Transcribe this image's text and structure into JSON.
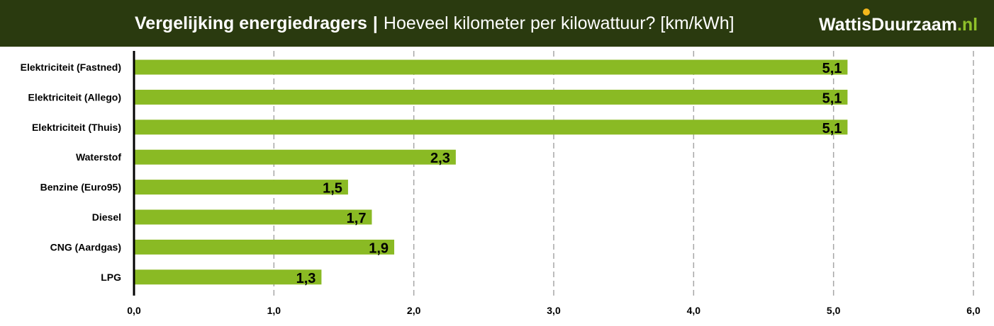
{
  "header": {
    "title_bold": "Vergelijking energiedragers",
    "separator": "|",
    "title_rest": "Hoeveel kilometer per kilowattuur? [km/kWh]",
    "logo_main": "WattisDuurzaam",
    "logo_suffix": ".nl"
  },
  "colors": {
    "header_bg": "#2a3a0f",
    "bar": "#8aba24",
    "grid": "#a6a6a6",
    "axis": "#000000",
    "logo_accent": "#8fc02a",
    "sun": "#f5b81c"
  },
  "chart_data": {
    "type": "bar",
    "orientation": "horizontal",
    "title": "Vergelijking energiedragers | Hoeveel kilometer per kilowattuur? [km/kWh]",
    "categories": [
      "Elektriciteit (Fastned)",
      "Elektriciteit (Allego)",
      "Elektriciteit (Thuis)",
      "Waterstof",
      "Benzine (Euro95)",
      "Diesel",
      "CNG (Aardgas)",
      "LPG"
    ],
    "values": [
      5.1,
      5.1,
      5.1,
      2.3,
      1.53,
      1.7,
      1.86,
      1.34
    ],
    "value_labels": [
      "5,1",
      "5,1",
      "5,1",
      "2,3",
      "1,5",
      "1,7",
      "1,9",
      "1,3"
    ],
    "xlim": [
      0,
      6
    ],
    "x_ticks": [
      0,
      1,
      2,
      3,
      4,
      5,
      6
    ],
    "x_tick_labels": [
      "0,0",
      "1,0",
      "2,0",
      "3,0",
      "4,0",
      "5,0",
      "6,0"
    ],
    "grid": "vertical-dashed",
    "legend": "none"
  }
}
